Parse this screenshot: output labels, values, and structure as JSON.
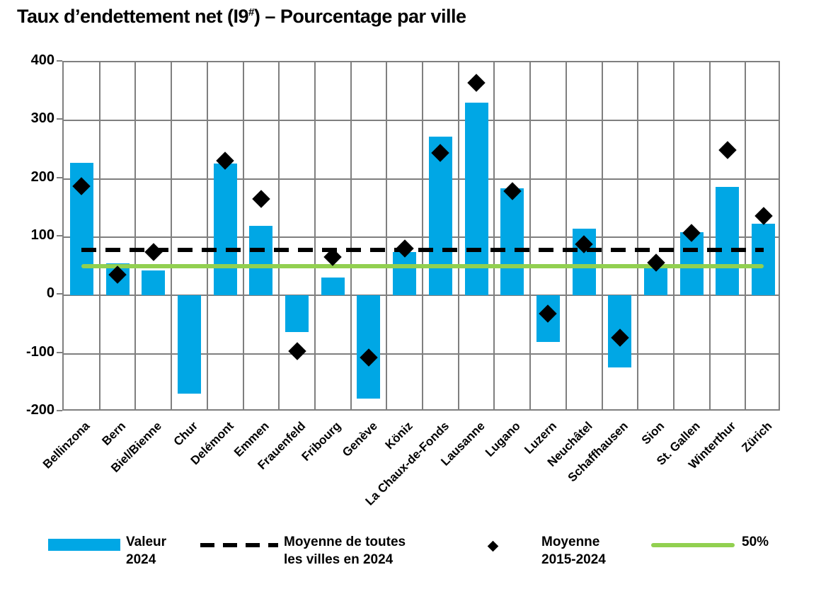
{
  "title": {
    "prefix": "Taux d’endettement net (I9",
    "superscript": "#",
    "suffix": ") – Pourcentage par ville"
  },
  "colors": {
    "bar_blue": "#00A7E5",
    "green_line": "#92D050",
    "dashed_line": "#000000",
    "diamond": "#000000",
    "grid": "#7F7F7F",
    "text": "#000000"
  },
  "chart_data": {
    "type": "bar",
    "title": "Taux d’endettement net (I9#) – Pourcentage par ville",
    "ylabel": "Pourcentage",
    "ylim": [
      -200,
      400
    ],
    "yticks": [
      400,
      300,
      200,
      100,
      0,
      -100,
      -200
    ],
    "grid": true,
    "legend_position": "bottom",
    "categories": [
      "Bellinzona",
      "Bern",
      "Biel/Bienne",
      "Chur",
      "Delémont",
      "Emmen",
      "Frauenfeld",
      "Fribourg",
      "Genève",
      "Köniz",
      "La Chaux-de-Fonds",
      "Lausanne",
      "Lugano",
      "Luzern",
      "Neuchâtel",
      "Schaffhausen",
      "Sion",
      "St. Gallen",
      "Winterthur",
      "Zürich"
    ],
    "series": [
      {
        "name": "Valeur 2024",
        "type": "bar",
        "color": "#00A7E5",
        "values": [
          228,
          55,
          43,
          -168,
          226,
          120,
          -63,
          31,
          -177,
          74,
          272,
          331,
          184,
          -80,
          114,
          -124,
          52,
          109,
          186,
          123
        ]
      },
      {
        "name": "Moyenne 2015-2024",
        "type": "point-diamond",
        "color": "#000000",
        "values": [
          187,
          36,
          75,
          null,
          231,
          165,
          -96,
          66,
          -107,
          80,
          245,
          365,
          179,
          -31,
          88,
          -72,
          56,
          107,
          249,
          136
        ]
      },
      {
        "name": "Moyenne de toutes les villes en 2024",
        "type": "hline-dashed",
        "color": "#000000",
        "value": 78
      },
      {
        "name": "50%",
        "type": "hline-solid",
        "color": "#92D050",
        "value": 50
      }
    ]
  },
  "legend": {
    "items": [
      {
        "swatch": "bar-swatch",
        "line1": "Valeur",
        "line2": "2024"
      },
      {
        "swatch": "dashed-line-swatch",
        "line1": "Moyenne de toutes",
        "line2": "les villes en 2024"
      },
      {
        "swatch": "diamond-swatch",
        "line1": "Moyenne",
        "line2": "2015-2024"
      },
      {
        "swatch": "green-line-swatch",
        "line1": "50%",
        "line2": ""
      }
    ]
  }
}
